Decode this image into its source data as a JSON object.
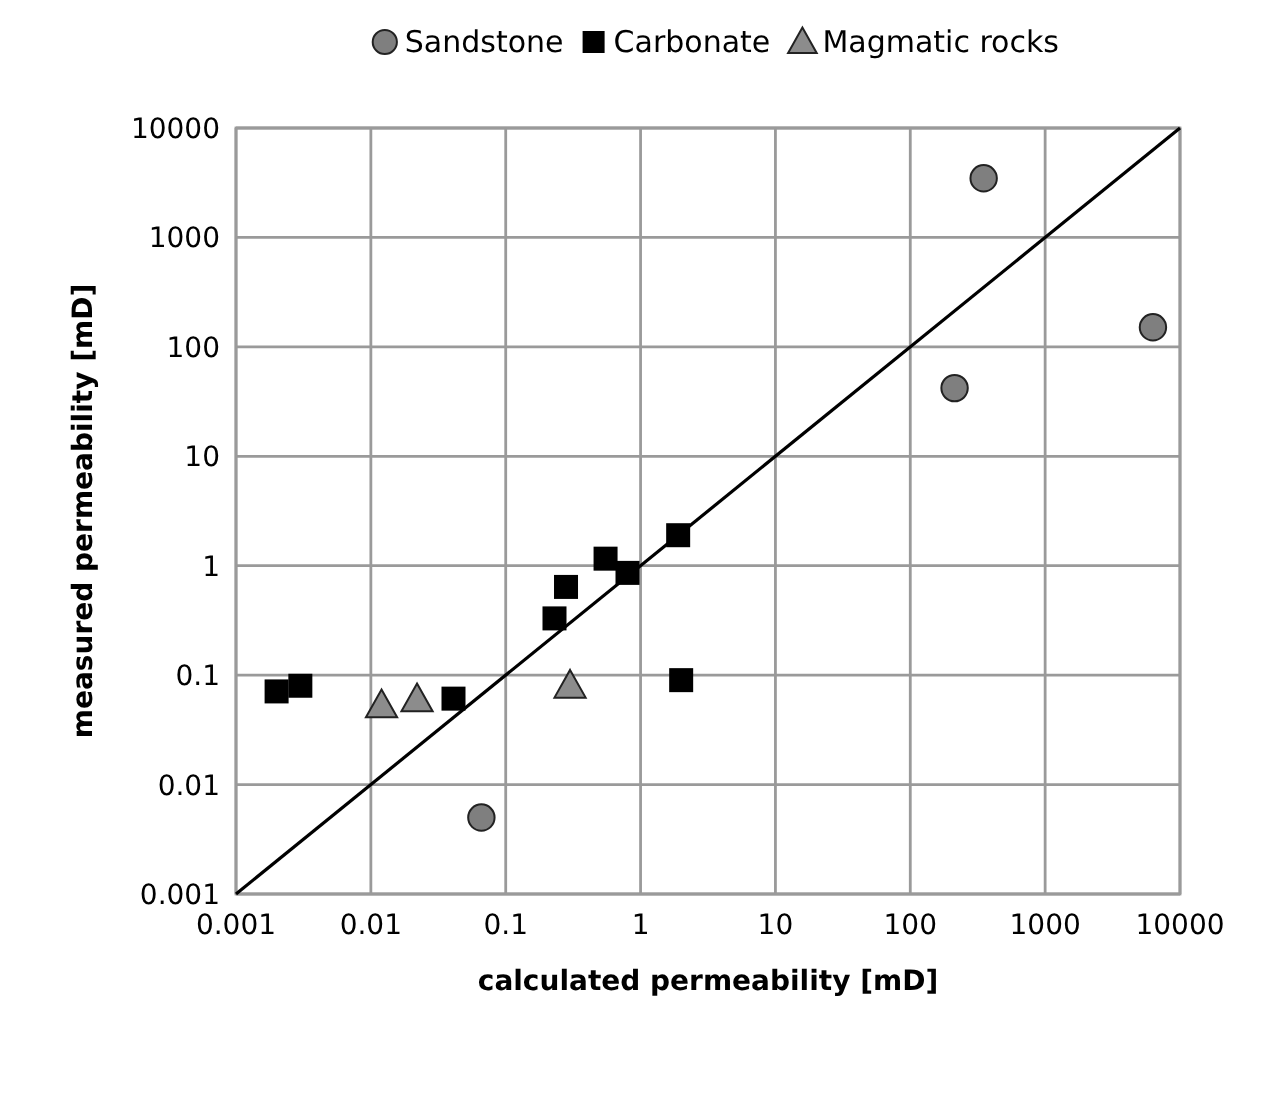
{
  "chart_data": {
    "type": "scatter",
    "xlabel": "calculated permeability [mD]",
    "ylabel": "measured permeability [mD]",
    "log": "xy",
    "grid": true,
    "legend": "top",
    "xlim": [
      0.001,
      10000
    ],
    "ylim": [
      0.001,
      10000
    ],
    "xticks": [
      0.001,
      0.01,
      0.1,
      1,
      10,
      100,
      1000,
      10000
    ],
    "yticks": [
      0.001,
      0.01,
      0.1,
      1,
      10,
      100,
      1000,
      10000
    ],
    "series": [
      {
        "name": "Sandstone",
        "color": "#7f7f7f",
        "marker": "circle",
        "x": [
          350,
          6300,
          213,
          0.066
        ],
        "values": [
          3470,
          151,
          42,
          0.005
        ]
      },
      {
        "name": "Carbonate",
        "color": "#000000",
        "marker": "square",
        "x": [
          0.002,
          0.003,
          0.041,
          0.23,
          0.28,
          0.55,
          0.8,
          1.9,
          2
        ],
        "values": [
          0.071,
          0.08,
          0.061,
          0.33,
          0.64,
          1.16,
          0.86,
          1.9,
          0.09
        ]
      },
      {
        "name": "Magmatic rocks",
        "color": "#8c8c8c",
        "marker": "triangle",
        "x": [
          0.012,
          0.022,
          0.3
        ],
        "values": [
          0.053,
          0.06,
          0.08
        ]
      },
      {
        "type": "line",
        "color": "#000000",
        "marker": "none",
        "x": [
          0.001,
          10000
        ],
        "values": [
          0.001,
          10000
        ]
      }
    ]
  }
}
